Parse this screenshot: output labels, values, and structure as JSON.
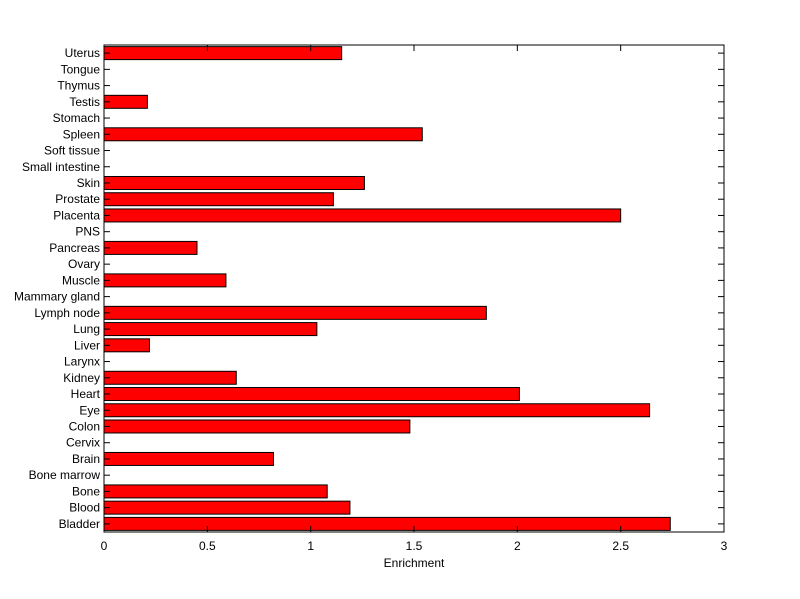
{
  "chart_data": {
    "type": "bar",
    "orientation": "horizontal",
    "title": "",
    "xlabel": "Enrichment",
    "ylabel": "",
    "xlim": [
      0,
      3
    ],
    "xticks": [
      0,
      0.5,
      1,
      1.5,
      2,
      2.5,
      3
    ],
    "xtick_labels": [
      "0",
      "0.5",
      "1",
      "1.5",
      "2",
      "2.5",
      "3"
    ],
    "grid": false,
    "bar_color": "#ff0000",
    "categories": [
      "Bladder",
      "Blood",
      "Bone",
      "Bone marrow",
      "Brain",
      "Cervix",
      "Colon",
      "Eye",
      "Heart",
      "Kidney",
      "Larynx",
      "Liver",
      "Lung",
      "Lymph node",
      "Mammary gland",
      "Muscle",
      "Ovary",
      "Pancreas",
      "PNS",
      "Placenta",
      "Prostate",
      "Skin",
      "Small intestine",
      "Soft tissue",
      "Spleen",
      "Stomach",
      "Testis",
      "Thymus",
      "Tongue",
      "Uterus"
    ],
    "values": [
      2.74,
      1.19,
      1.08,
      0,
      0.82,
      0,
      1.48,
      2.64,
      2.01,
      0.64,
      0,
      0.22,
      1.03,
      1.85,
      0,
      0.59,
      0,
      0.45,
      0,
      2.5,
      1.11,
      1.26,
      0,
      0,
      1.54,
      0,
      0.21,
      0,
      0,
      1.15
    ]
  }
}
